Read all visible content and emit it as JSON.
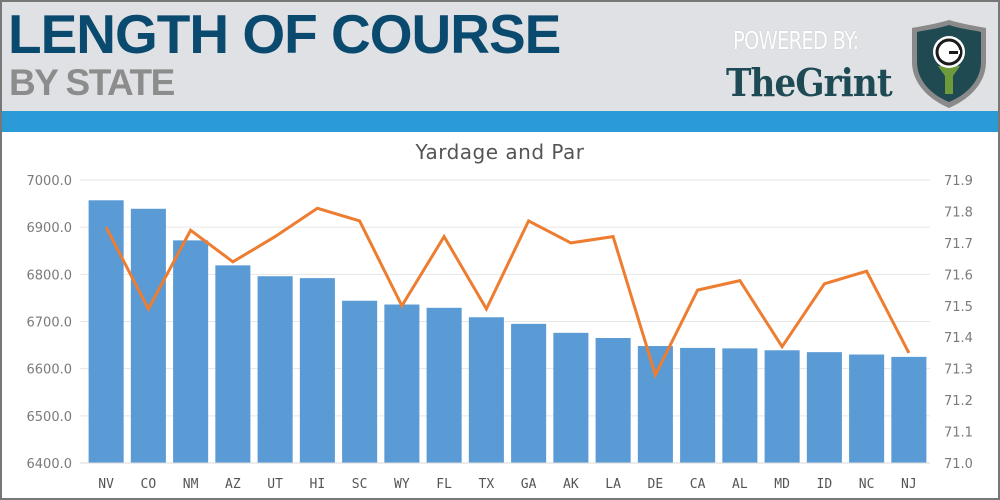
{
  "header": {
    "title": "LENGTH OF COURSE",
    "subtitle": "BY STATE",
    "powered_by": "POWERED BY:",
    "brand": "TheGrint",
    "logo_letter": "G"
  },
  "colors": {
    "header_bg": "#dfe1e4",
    "title": "#0b4a6f",
    "subtitle": "#8c8c8c",
    "stripe": "#2a9bd7",
    "bar": "#5b9bd5",
    "line": "#ed7d31",
    "grid": "#e6e6e6"
  },
  "chart_data": {
    "type": "bar+line",
    "title": "Yardage and Par",
    "categories": [
      "NV",
      "CO",
      "NM",
      "AZ",
      "UT",
      "HI",
      "SC",
      "WY",
      "FL",
      "TX",
      "GA",
      "AK",
      "LA",
      "DE",
      "CA",
      "AL",
      "MD",
      "ID",
      "NC",
      "NJ"
    ],
    "series": [
      {
        "name": "Yardage",
        "type": "bar",
        "axis": "left",
        "values": [
          6957,
          6939,
          6872,
          6819,
          6796,
          6792,
          6744,
          6736,
          6729,
          6709,
          6695,
          6676,
          6665,
          6648,
          6644,
          6643,
          6639,
          6635,
          6630,
          6625
        ]
      },
      {
        "name": "Par",
        "type": "line",
        "axis": "right",
        "values": [
          71.75,
          71.49,
          71.74,
          71.64,
          71.72,
          71.81,
          71.77,
          71.5,
          71.72,
          71.49,
          71.77,
          71.7,
          71.72,
          71.28,
          71.55,
          71.58,
          71.37,
          71.57,
          71.61,
          71.35
        ]
      }
    ],
    "y_left": {
      "min": 6400,
      "max": 7000,
      "step": 100,
      "ticks": [
        "7000.0",
        "6900.0",
        "6800.0",
        "6700.0",
        "6600.0",
        "6500.0",
        "6400.0"
      ]
    },
    "y_right": {
      "min": 71.0,
      "max": 71.9,
      "step": 0.1,
      "ticks": [
        "71.9",
        "71.8",
        "71.7",
        "71.6",
        "71.5",
        "71.4",
        "71.3",
        "71.2",
        "71.1",
        "71.0"
      ]
    },
    "xlabel": "",
    "ylabel": "",
    "grid": true,
    "legend": "none"
  }
}
